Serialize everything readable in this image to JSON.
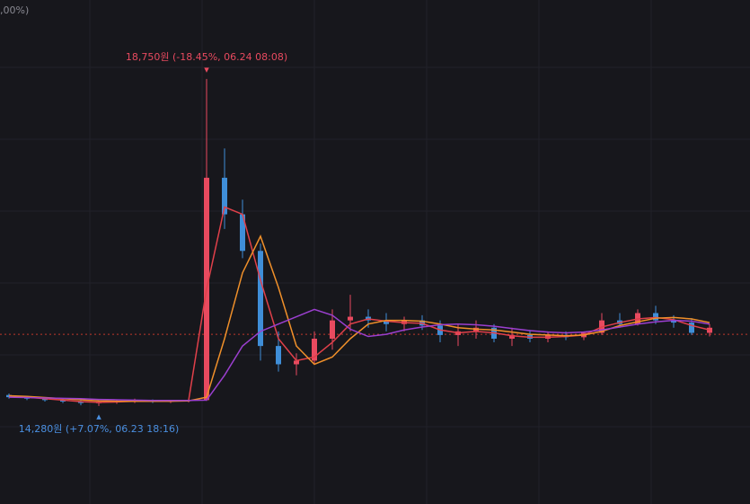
{
  "chart_data": {
    "type": "candlestick",
    "header_text": ",00%)",
    "categories": [
      null,
      null,
      null,
      null,
      null,
      null,
      null,
      null,
      null,
      null,
      null,
      null,
      null,
      null,
      null,
      null,
      null,
      null,
      null,
      null,
      null,
      null,
      null,
      null,
      null,
      null,
      null,
      null,
      null,
      null,
      null,
      null,
      null,
      null,
      null,
      null,
      null,
      null,
      null,
      null
    ],
    "ohlc": [
      [
        14430,
        14450,
        14380,
        14400
      ],
      [
        14400,
        14420,
        14360,
        14380
      ],
      [
        14380,
        14400,
        14340,
        14360
      ],
      [
        14360,
        14380,
        14320,
        14340
      ],
      [
        14340,
        14360,
        14290,
        14320
      ],
      [
        14320,
        14340,
        14280,
        14330
      ],
      [
        14330,
        14360,
        14310,
        14340
      ],
      [
        14340,
        14380,
        14320,
        14350
      ],
      [
        14350,
        14370,
        14320,
        14340
      ],
      [
        14340,
        14360,
        14320,
        14350
      ],
      [
        14350,
        14380,
        14330,
        14360
      ],
      [
        14360,
        18750,
        14350,
        17400
      ],
      [
        17400,
        17800,
        16700,
        16900
      ],
      [
        16900,
        17100,
        16300,
        16400
      ],
      [
        16400,
        16500,
        14900,
        15100
      ],
      [
        15100,
        15300,
        14750,
        14850
      ],
      [
        14850,
        15000,
        14700,
        14900
      ],
      [
        14900,
        15300,
        14850,
        15200
      ],
      [
        15200,
        15600,
        15050,
        15450
      ],
      [
        15450,
        15800,
        15300,
        15500
      ],
      [
        15500,
        15600,
        15350,
        15450
      ],
      [
        15450,
        15550,
        15300,
        15400
      ],
      [
        15400,
        15500,
        15300,
        15450
      ],
      [
        15450,
        15520,
        15320,
        15380
      ],
      [
        15380,
        15450,
        15150,
        15250
      ],
      [
        15250,
        15400,
        15100,
        15300
      ],
      [
        15300,
        15450,
        15200,
        15350
      ],
      [
        15350,
        15400,
        15150,
        15200
      ],
      [
        15200,
        15350,
        15100,
        15250
      ],
      [
        15250,
        15320,
        15150,
        15200
      ],
      [
        15200,
        15300,
        15150,
        15250
      ],
      [
        15250,
        15300,
        15180,
        15220
      ],
      [
        15220,
        15300,
        15180,
        15280
      ],
      [
        15280,
        15550,
        15250,
        15450
      ],
      [
        15450,
        15550,
        15350,
        15400
      ],
      [
        15400,
        15600,
        15380,
        15550
      ],
      [
        15550,
        15650,
        15400,
        15450
      ],
      [
        15450,
        15520,
        15350,
        15420
      ],
      [
        15420,
        15480,
        15250,
        15280
      ],
      [
        15280,
        15400,
        15230,
        15350
      ]
    ],
    "up_color": "#e84a5f",
    "down_color": "#3f8ed8",
    "series": [
      {
        "color": "#e0404a",
        "values": [
          14420,
          14400,
          14380,
          14360,
          14340,
          14330,
          14335,
          14345,
          14345,
          14348,
          14355,
          15880,
          17000,
          16900,
          16000,
          15200,
          14900,
          14950,
          15150,
          15400,
          15470,
          15440,
          15420,
          15410,
          15320,
          15280,
          15300,
          15280,
          15240,
          15220,
          15220,
          15230,
          15250,
          15360,
          15420,
          15470,
          15490,
          15460,
          15380,
          15320
        ]
      },
      {
        "color": "#f0902a",
        "values": [
          14420,
          14410,
          14395,
          14380,
          14365,
          14350,
          14345,
          14345,
          14345,
          14345,
          14350,
          14400,
          15200,
          16100,
          16600,
          15900,
          15100,
          14850,
          14950,
          15200,
          15400,
          15450,
          15450,
          15440,
          15400,
          15350,
          15330,
          15320,
          15290,
          15260,
          15250,
          15240,
          15250,
          15300,
          15380,
          15430,
          15480,
          15490,
          15470,
          15420
        ]
      },
      {
        "color": "#9b3fcf",
        "values": [
          14400,
          14395,
          14390,
          14385,
          14380,
          14370,
          14365,
          14360,
          14355,
          14355,
          14355,
          14360,
          14700,
          15100,
          15300,
          15400,
          15500,
          15600,
          15520,
          15330,
          15230,
          15260,
          15320,
          15360,
          15390,
          15400,
          15390,
          15370,
          15340,
          15310,
          15290,
          15280,
          15290,
          15320,
          15360,
          15400,
          15430,
          15450,
          15440,
          15400
        ]
      }
    ],
    "reference_line": 15260,
    "reference_color": "#c0392b",
    "ylim": [
      12940,
      19830
    ],
    "annotations": [
      {
        "text": "18,750원 (-18.45%, 06.24 08:08)",
        "color": "#e84a5f"
      },
      {
        "text": "14,280원 (+7.07%, 06.23 18:16)",
        "color": "#4a8fe0"
      }
    ]
  }
}
